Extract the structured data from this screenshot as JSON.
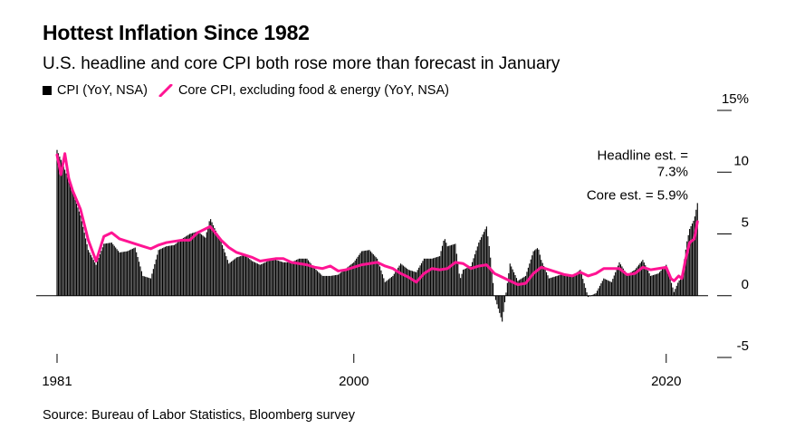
{
  "chart_data": {
    "type": "bar",
    "title": "Hottest Inflation Since 1982",
    "subtitle": "U.S. headline and core CPI both rose more than forecast in January",
    "source": "Source: Bureau of Labor Statistics, Bloomberg survey",
    "legend": {
      "placement": "top-left",
      "items": [
        {
          "label": "CPI (YoY, NSA)",
          "color": "#000000",
          "marker": "square"
        },
        {
          "label": "Core CPI, excluding food & energy (YoY, NSA)",
          "color": "#ff1493",
          "marker": "line"
        }
      ]
    },
    "x_tick_labels": [
      "1981",
      "2000",
      "2020"
    ],
    "x_ticks": [
      1981,
      2000,
      2020
    ],
    "xlim": [
      1981,
      2022.1
    ],
    "y_tick_labels": [
      "15%",
      "10",
      "5",
      "0",
      "-5"
    ],
    "y_ticks": [
      15,
      10,
      5,
      0,
      -5
    ],
    "ylim": [
      -5,
      15
    ],
    "grid": false,
    "annotations": [
      {
        "lines": [
          "Headline est. =",
          "7.3%"
        ],
        "x": 2022,
        "y": 11.0
      },
      {
        "lines": [
          "Core est. = 5.9%"
        ],
        "x": 2022,
        "y": 7.8
      }
    ],
    "series": [
      {
        "name": "CPI (YoY, NSA)",
        "type": "bar",
        "color": "#000000",
        "points": [
          [
            1981.0,
            11.8
          ],
          [
            1981.5,
            10.2
          ],
          [
            1982.0,
            8.4
          ],
          [
            1982.5,
            6.5
          ],
          [
            1983.0,
            3.7
          ],
          [
            1983.5,
            2.5
          ],
          [
            1984.0,
            4.2
          ],
          [
            1984.5,
            4.3
          ],
          [
            1985.0,
            3.5
          ],
          [
            1985.5,
            3.6
          ],
          [
            1986.0,
            3.9
          ],
          [
            1986.5,
            1.6
          ],
          [
            1987.0,
            1.4
          ],
          [
            1987.5,
            3.7
          ],
          [
            1988.0,
            4.0
          ],
          [
            1988.5,
            4.1
          ],
          [
            1989.0,
            4.6
          ],
          [
            1989.5,
            5.0
          ],
          [
            1990.0,
            5.2
          ],
          [
            1990.5,
            4.7
          ],
          [
            1990.8,
            6.3
          ],
          [
            1991.0,
            5.7
          ],
          [
            1991.5,
            4.4
          ],
          [
            1992.0,
            2.6
          ],
          [
            1992.5,
            3.1
          ],
          [
            1993.0,
            3.3
          ],
          [
            1993.5,
            2.8
          ],
          [
            1994.0,
            2.5
          ],
          [
            1994.5,
            2.8
          ],
          [
            1995.0,
            2.9
          ],
          [
            1995.5,
            2.7
          ],
          [
            1996.0,
            2.7
          ],
          [
            1996.5,
            3.0
          ],
          [
            1997.0,
            3.0
          ],
          [
            1997.5,
            2.2
          ],
          [
            1998.0,
            1.6
          ],
          [
            1998.5,
            1.6
          ],
          [
            1999.0,
            1.7
          ],
          [
            1999.5,
            2.2
          ],
          [
            2000.0,
            2.7
          ],
          [
            2000.5,
            3.6
          ],
          [
            2001.0,
            3.7
          ],
          [
            2001.5,
            3.0
          ],
          [
            2002.0,
            1.1
          ],
          [
            2002.5,
            1.6
          ],
          [
            2003.0,
            2.6
          ],
          [
            2003.5,
            2.1
          ],
          [
            2004.0,
            1.9
          ],
          [
            2004.5,
            3.0
          ],
          [
            2005.0,
            3.0
          ],
          [
            2005.5,
            3.2
          ],
          [
            2005.8,
            4.7
          ],
          [
            2006.0,
            4.0
          ],
          [
            2006.5,
            4.2
          ],
          [
            2006.8,
            1.3
          ],
          [
            2007.0,
            2.1
          ],
          [
            2007.5,
            2.4
          ],
          [
            2008.0,
            4.3
          ],
          [
            2008.5,
            5.6
          ],
          [
            2008.7,
            3.7
          ],
          [
            2009.0,
            0.0
          ],
          [
            2009.5,
            -2.1
          ],
          [
            2010.0,
            2.6
          ],
          [
            2010.5,
            1.2
          ],
          [
            2011.0,
            1.6
          ],
          [
            2011.5,
            3.6
          ],
          [
            2011.8,
            3.9
          ],
          [
            2012.0,
            2.9
          ],
          [
            2012.5,
            1.4
          ],
          [
            2013.0,
            1.6
          ],
          [
            2013.5,
            1.8
          ],
          [
            2014.0,
            1.6
          ],
          [
            2014.5,
            2.1
          ],
          [
            2015.0,
            -0.1
          ],
          [
            2015.5,
            0.2
          ],
          [
            2016.0,
            1.4
          ],
          [
            2016.5,
            1.1
          ],
          [
            2017.0,
            2.7
          ],
          [
            2017.5,
            1.7
          ],
          [
            2018.0,
            2.1
          ],
          [
            2018.5,
            2.9
          ],
          [
            2019.0,
            1.6
          ],
          [
            2019.5,
            1.8
          ],
          [
            2020.0,
            2.5
          ],
          [
            2020.5,
            0.3
          ],
          [
            2020.8,
            1.2
          ],
          [
            2021.0,
            1.4
          ],
          [
            2021.3,
            4.2
          ],
          [
            2021.5,
            5.4
          ],
          [
            2021.8,
            6.2
          ],
          [
            2022.0,
            7.5
          ]
        ]
      },
      {
        "name": "Core CPI, excluding food & energy (YoY, NSA)",
        "type": "line",
        "color": "#ff1493",
        "points": [
          [
            1981.0,
            11.4
          ],
          [
            1981.25,
            9.8
          ],
          [
            1981.5,
            11.5
          ],
          [
            1981.75,
            9.5
          ],
          [
            1982.0,
            8.5
          ],
          [
            1982.5,
            7.0
          ],
          [
            1983.0,
            4.5
          ],
          [
            1983.5,
            2.8
          ],
          [
            1984.0,
            4.8
          ],
          [
            1984.5,
            5.1
          ],
          [
            1985.0,
            4.6
          ],
          [
            1985.5,
            4.4
          ],
          [
            1986.0,
            4.2
          ],
          [
            1986.5,
            4.0
          ],
          [
            1987.0,
            3.8
          ],
          [
            1987.5,
            4.1
          ],
          [
            1988.0,
            4.3
          ],
          [
            1988.5,
            4.4
          ],
          [
            1989.0,
            4.5
          ],
          [
            1989.5,
            4.5
          ],
          [
            1990.0,
            5.1
          ],
          [
            1990.8,
            5.6
          ],
          [
            1991.0,
            5.3
          ],
          [
            1991.5,
            4.5
          ],
          [
            1992.0,
            3.9
          ],
          [
            1992.5,
            3.5
          ],
          [
            1993.0,
            3.3
          ],
          [
            1993.5,
            3.1
          ],
          [
            1994.0,
            2.8
          ],
          [
            1994.5,
            2.9
          ],
          [
            1995.0,
            3.0
          ],
          [
            1995.5,
            3.0
          ],
          [
            1996.0,
            2.7
          ],
          [
            1996.5,
            2.6
          ],
          [
            1997.0,
            2.5
          ],
          [
            1997.5,
            2.3
          ],
          [
            1998.0,
            2.2
          ],
          [
            1998.5,
            2.4
          ],
          [
            1999.0,
            2.0
          ],
          [
            1999.5,
            2.1
          ],
          [
            2000.0,
            2.3
          ],
          [
            2000.5,
            2.5
          ],
          [
            2001.0,
            2.6
          ],
          [
            2001.5,
            2.7
          ],
          [
            2002.0,
            2.4
          ],
          [
            2002.5,
            2.2
          ],
          [
            2003.0,
            1.8
          ],
          [
            2003.5,
            1.5
          ],
          [
            2004.0,
            1.1
          ],
          [
            2004.5,
            1.8
          ],
          [
            2005.0,
            2.2
          ],
          [
            2005.5,
            2.1
          ],
          [
            2006.0,
            2.2
          ],
          [
            2006.5,
            2.7
          ],
          [
            2007.0,
            2.6
          ],
          [
            2007.5,
            2.2
          ],
          [
            2008.0,
            2.4
          ],
          [
            2008.5,
            2.5
          ],
          [
            2009.0,
            1.8
          ],
          [
            2009.5,
            1.5
          ],
          [
            2010.0,
            1.2
          ],
          [
            2010.5,
            0.9
          ],
          [
            2011.0,
            1.0
          ],
          [
            2011.5,
            1.8
          ],
          [
            2012.0,
            2.3
          ],
          [
            2012.5,
            2.1
          ],
          [
            2013.0,
            1.9
          ],
          [
            2013.5,
            1.7
          ],
          [
            2014.0,
            1.6
          ],
          [
            2014.5,
            1.9
          ],
          [
            2015.0,
            1.6
          ],
          [
            2015.5,
            1.8
          ],
          [
            2016.0,
            2.2
          ],
          [
            2016.5,
            2.2
          ],
          [
            2017.0,
            2.2
          ],
          [
            2017.5,
            1.7
          ],
          [
            2018.0,
            1.8
          ],
          [
            2018.5,
            2.3
          ],
          [
            2019.0,
            2.1
          ],
          [
            2019.5,
            2.2
          ],
          [
            2020.0,
            2.3
          ],
          [
            2020.3,
            1.4
          ],
          [
            2020.5,
            1.2
          ],
          [
            2020.8,
            1.6
          ],
          [
            2021.0,
            1.4
          ],
          [
            2021.25,
            3.0
          ],
          [
            2021.5,
            4.3
          ],
          [
            2021.8,
            4.6
          ],
          [
            2022.0,
            6.0
          ]
        ]
      }
    ]
  }
}
